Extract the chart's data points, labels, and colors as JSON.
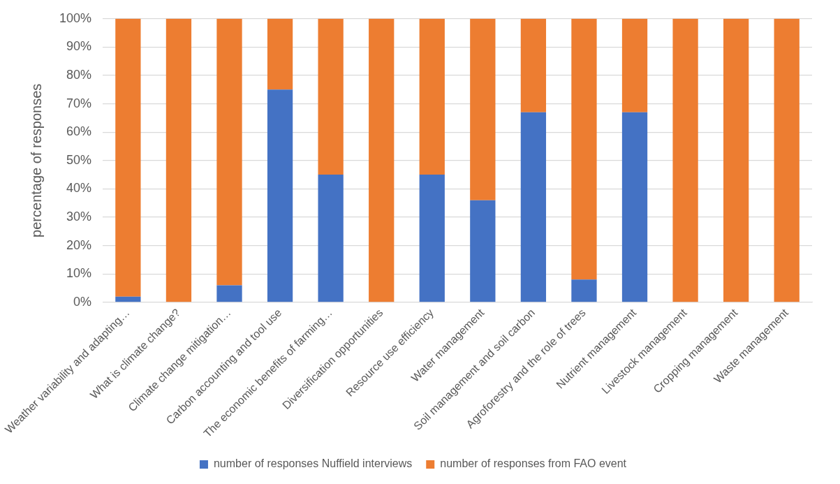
{
  "chart_data": {
    "type": "bar",
    "stacked": true,
    "ylabel": "percentage of responses",
    "categories": [
      "Weather variability and adapting…",
      "What is climate change?",
      "Climate change mitigation…",
      "Carbon accounting and tool use",
      "The economic benefits of farming…",
      "Diversification opportunities",
      "Resource use efficiency",
      "Water management",
      "Soil management and soil carbon",
      "Agroforestry and the role of trees",
      "Nutrient management",
      "Livestock management",
      "Cropping management",
      "Waste management"
    ],
    "series": [
      {
        "name": "number of responses Nuffield interviews",
        "color": "#4472c4",
        "values": [
          2,
          0,
          6,
          75,
          45,
          0,
          45,
          36,
          67,
          8,
          67,
          0,
          0,
          0
        ]
      },
      {
        "name": "number of responses from FAO event",
        "color": "#ed7d31",
        "values": [
          98,
          100,
          94,
          25,
          55,
          100,
          55,
          64,
          33,
          92,
          33,
          100,
          100,
          100
        ]
      }
    ],
    "ylim": [
      0,
      100
    ],
    "yticks": [
      {
        "value": 0,
        "label": "0%"
      },
      {
        "value": 10,
        "label": "10%"
      },
      {
        "value": 20,
        "label": "20%"
      },
      {
        "value": 30,
        "label": "30%"
      },
      {
        "value": 40,
        "label": "40%"
      },
      {
        "value": 50,
        "label": "50%"
      },
      {
        "value": 60,
        "label": "60%"
      },
      {
        "value": 70,
        "label": "70%"
      },
      {
        "value": 80,
        "label": "80%"
      },
      {
        "value": 90,
        "label": "90%"
      },
      {
        "value": 100,
        "label": "100%"
      }
    ],
    "grid": "y",
    "legend": "bottom"
  }
}
